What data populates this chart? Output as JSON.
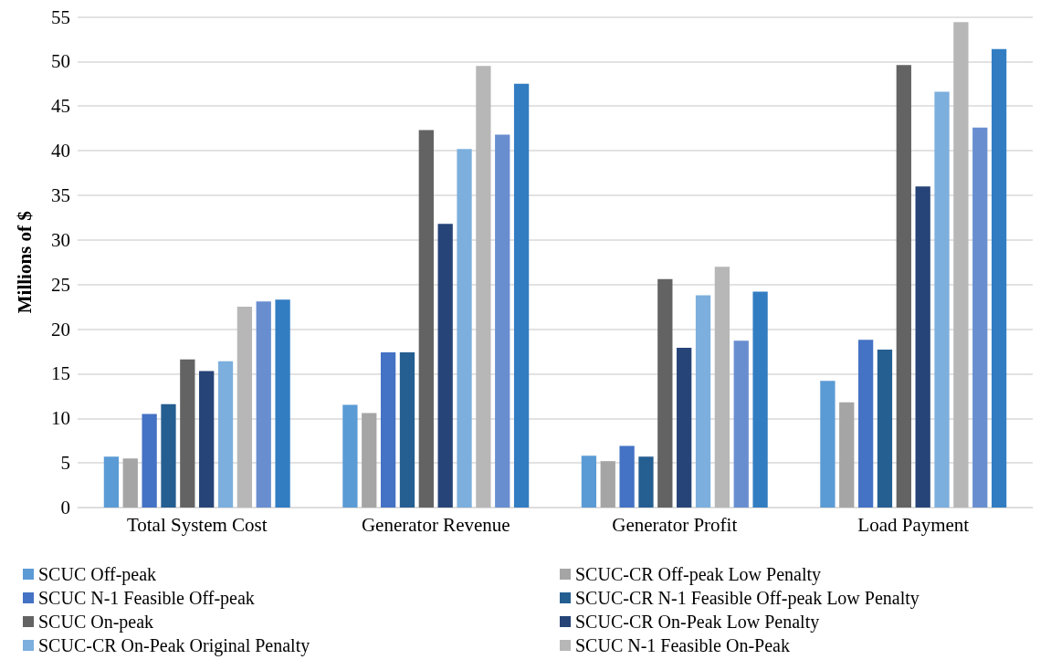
{
  "chart_data": {
    "type": "bar",
    "ylabel": "Millions of $",
    "categories": [
      "Total System Cost",
      "Generator Revenue",
      "Generator Profit",
      "Load Payment"
    ],
    "series": [
      {
        "name": "SCUC Off-peak",
        "color": "#5b9bd5",
        "values": [
          5.7,
          11.5,
          5.8,
          14.2
        ]
      },
      {
        "name": "SCUC-CR Off-peak Low Penalty",
        "color": "#a5a5a5",
        "values": [
          5.5,
          10.6,
          5.2,
          11.8
        ]
      },
      {
        "name": "SCUC N-1 Feasible Off-peak",
        "color": "#4472c4",
        "values": [
          10.5,
          17.4,
          6.9,
          18.8
        ]
      },
      {
        "name": "SCUC-CR N-1 Feasible Off-peak Low Penalty",
        "color": "#255e91",
        "values": [
          11.6,
          17.4,
          5.7,
          17.7
        ]
      },
      {
        "name": "SCUC On-peak",
        "color": "#636363",
        "values": [
          16.6,
          42.3,
          25.6,
          49.6
        ]
      },
      {
        "name": "SCUC-CR On-Peak Low Penalty",
        "color": "#264478",
        "values": [
          15.3,
          31.8,
          17.9,
          36.0
        ]
      },
      {
        "name": "SCUC-CR On-Peak Original Penalty",
        "color": "#7cafdd",
        "values": [
          16.4,
          40.2,
          23.8,
          46.6
        ]
      },
      {
        "name": "SCUC N-1 Feasible On-Peak",
        "color": "#b7b7b7",
        "values": [
          22.5,
          49.5,
          27.0,
          54.4
        ]
      },
      {
        "color": "#698ed0",
        "values": [
          23.1,
          41.8,
          18.7,
          42.6
        ]
      },
      {
        "color": "#327dc2",
        "values": [
          23.3,
          47.5,
          24.2,
          51.4
        ]
      }
    ],
    "ylim": [
      0,
      55
    ],
    "yticks": [
      0,
      5,
      10,
      15,
      20,
      25,
      30,
      35,
      40,
      45,
      50,
      55
    ],
    "grid": "y",
    "legend": "bottom"
  }
}
